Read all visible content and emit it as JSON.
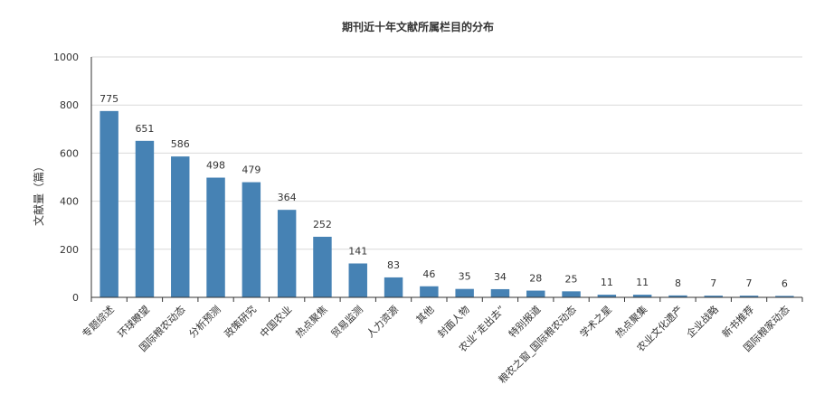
{
  "chart_data": {
    "type": "bar",
    "title": "期刊近十年文献所属栏目的分布",
    "xlabel": "",
    "ylabel": "文献量（篇）",
    "ylim": [
      0,
      1000
    ],
    "yticks": [
      "0",
      "200",
      "400",
      "600",
      "800",
      "1000"
    ],
    "grid": true,
    "color": "#4682B4",
    "categories": [
      "专题综述",
      "环球瞭望",
      "国际粮农动态",
      "分析预测",
      "政策研究",
      "中国农业",
      "热点聚焦",
      "贸易监测",
      "人力资源",
      "其他",
      "封面人物",
      "农业“走出去”",
      "特别报道",
      "粮农之窗_国际粮农动态",
      "学术之星",
      "热点聚集",
      "农业文化遗产",
      "企业战略",
      "新书推荐",
      "国际粮家动态"
    ],
    "values": [
      775,
      651,
      586,
      498,
      479,
      364,
      252,
      141,
      83,
      46,
      35,
      34,
      28,
      25,
      11,
      11,
      8,
      7,
      7,
      6
    ]
  }
}
